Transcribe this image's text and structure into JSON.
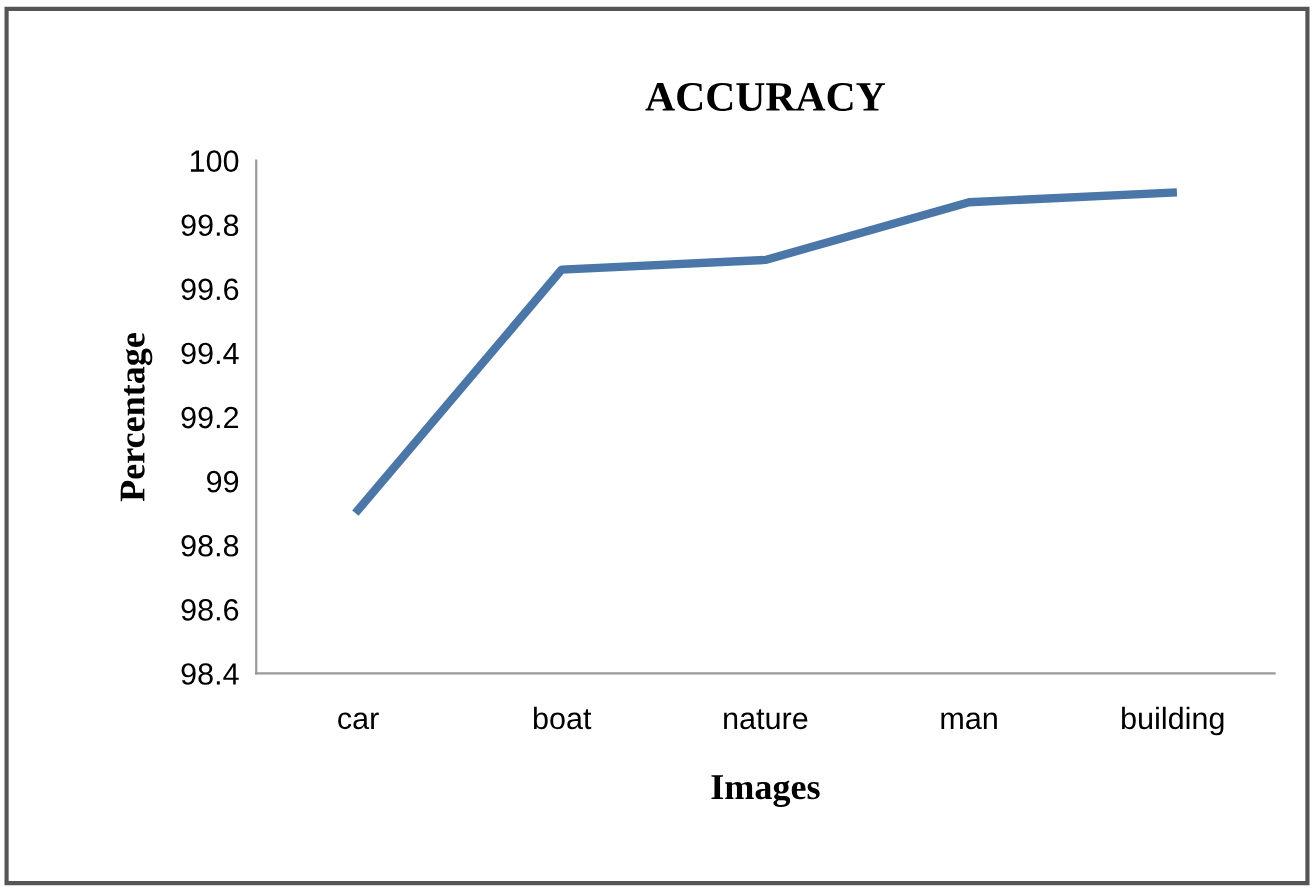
{
  "chart_data": {
    "type": "line",
    "title": "ACCURACY",
    "xlabel": "Images",
    "ylabel": "Percentage",
    "categories": [
      "car",
      "boat",
      "nature",
      "man",
      "building"
    ],
    "series": [
      {
        "color": "#4a76a8",
        "values": [
          98.91,
          99.66,
          99.69,
          99.87,
          99.9
        ]
      }
    ],
    "ylim": [
      98.4,
      100
    ],
    "yticks": [
      {
        "value": 98.4,
        "label": "98.4"
      },
      {
        "value": 98.6,
        "label": "98.6"
      },
      {
        "value": 98.8,
        "label": "98.8"
      },
      99,
      {
        "value": 99.2,
        "label": "99.2"
      },
      {
        "value": 99.4,
        "label": "99.4"
      },
      {
        "value": 99.6,
        "label": "99.6"
      },
      {
        "value": 99.8,
        "label": "99.8"
      },
      100
    ],
    "grid": false,
    "marker": "none",
    "line_style": "solid"
  }
}
